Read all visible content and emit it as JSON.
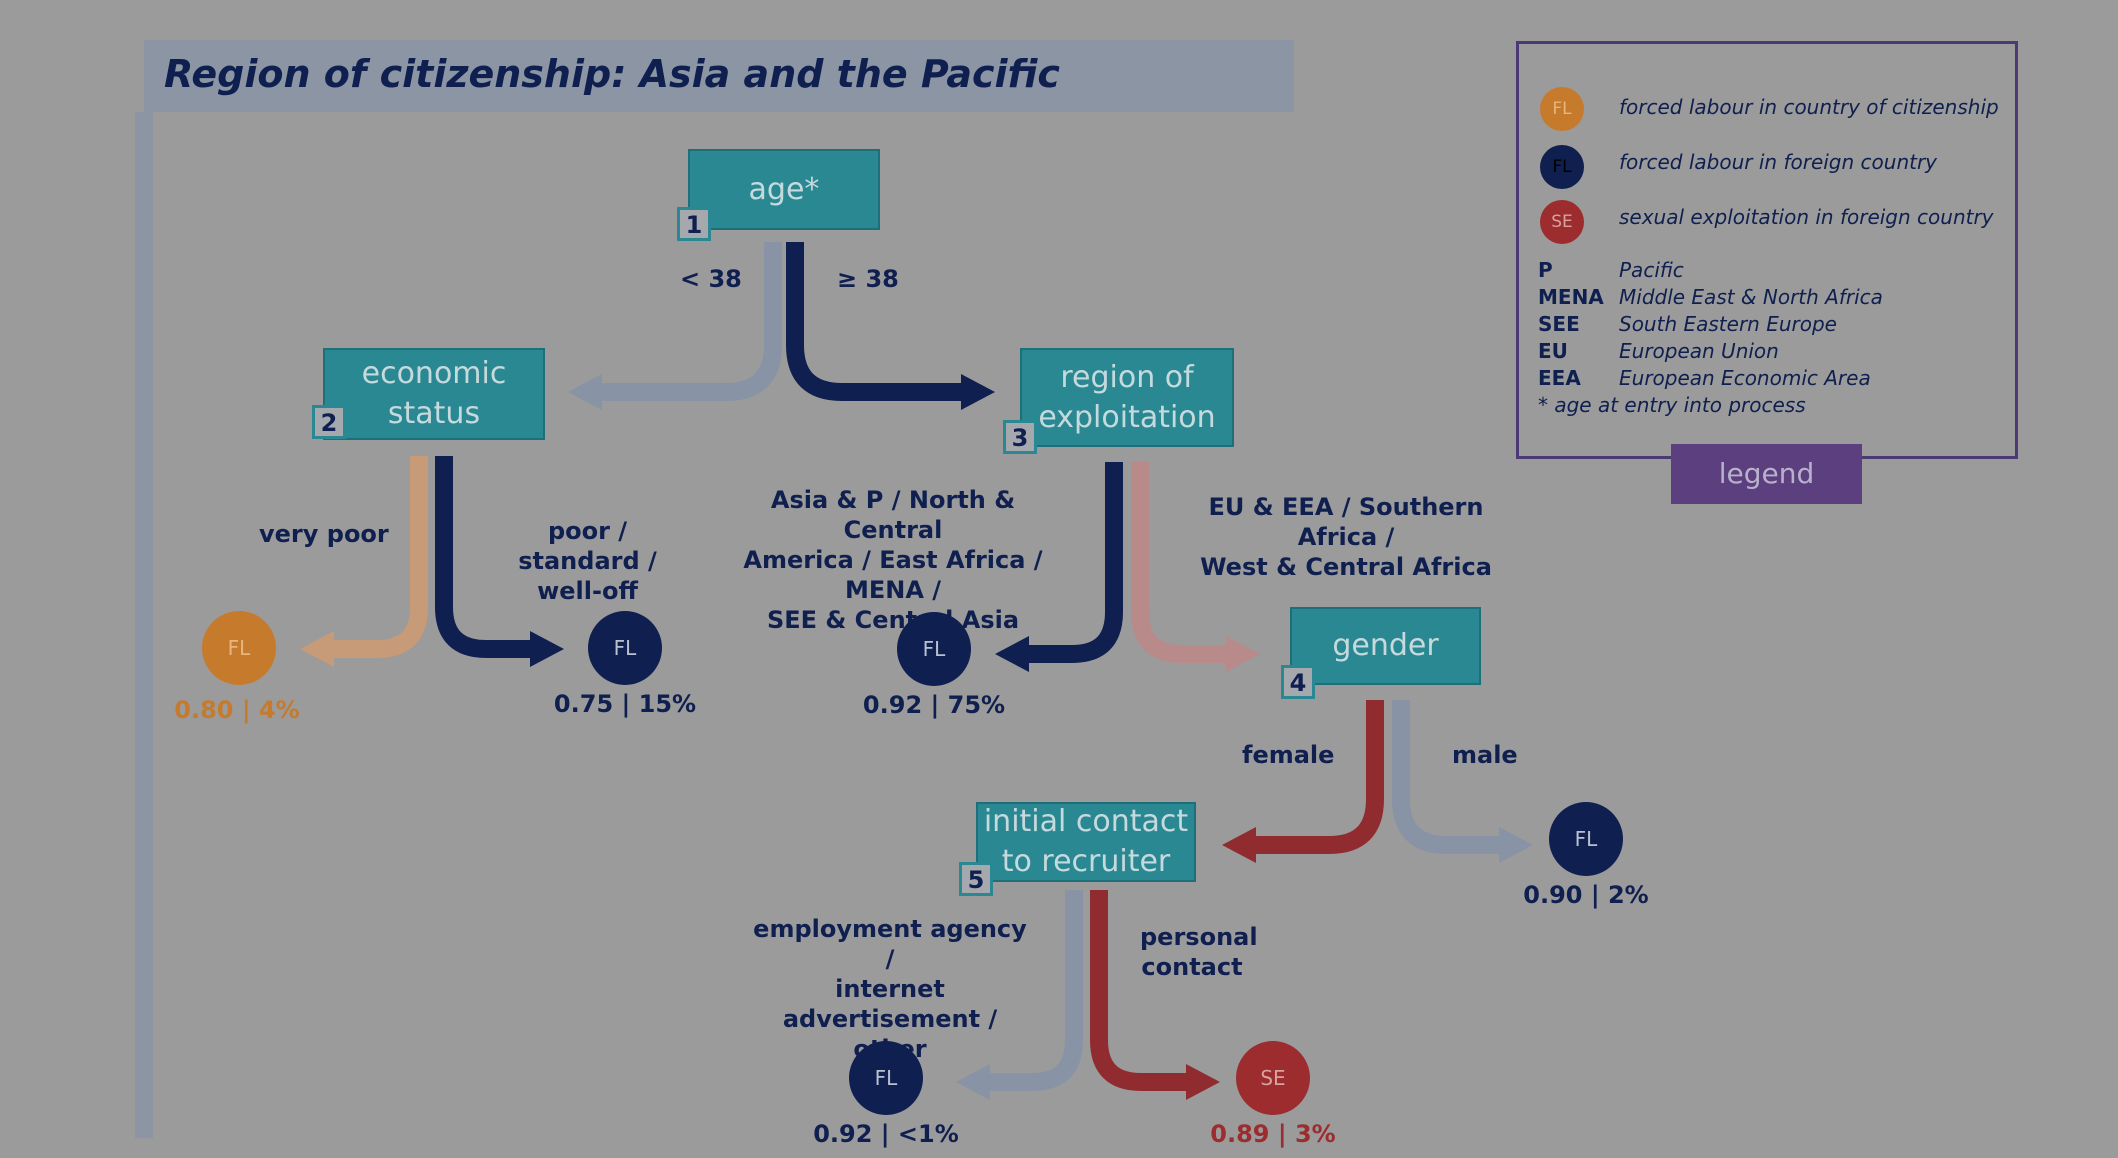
{
  "title": "Region of citizenship: Asia and the Pacific",
  "nodes": [
    {
      "num": "1",
      "label": "age*"
    },
    {
      "num": "2",
      "label": "economic\nstatus"
    },
    {
      "num": "3",
      "label": "region of\nexploitation"
    },
    {
      "num": "4",
      "label": "gender"
    },
    {
      "num": "5",
      "label": "initial contact\nto recruiter"
    }
  ],
  "branches": {
    "age_lt": "< 38",
    "age_ge": "≥ 38",
    "very_poor": "very poor",
    "poor_standard": "poor / standard /\nwell-off",
    "asia_regions": "Asia & P / North & Central\nAmerica / East Africa / MENA /\nSEE & Central Asia",
    "eu_regions": "EU & EEA / Southern Africa /\nWest &  Central Africa",
    "female": "female",
    "male": "male",
    "employment": "employment agency /\ninternet advertisement /\nother",
    "personal": "personal\ncontact"
  },
  "leaves": [
    {
      "type": "FL",
      "value": "0.80 | 4%",
      "color": "#c67a2c"
    },
    {
      "type": "FL",
      "value": "0.75 | 15%",
      "color": "#0f1f4f"
    },
    {
      "type": "FL",
      "value": "0.92 | 75%",
      "color": "#0f1f4f"
    },
    {
      "type": "FL",
      "value": "0.90 | 2%",
      "color": "#0f1f4f"
    },
    {
      "type": "FL",
      "value": "0.92 | <1%",
      "color": "#0f1f4f"
    },
    {
      "type": "SE",
      "value": "0.89 | 3%",
      "color": "#9c2c2e"
    }
  ],
  "legend": {
    "tab": "legend",
    "items": [
      {
        "code": "FL",
        "text": "forced labour in country of citizenship",
        "color": "#c67a2c"
      },
      {
        "code": "FL",
        "text": "forced labour in foreign country",
        "color": "#0f1f4f"
      },
      {
        "code": "SE",
        "text": "sexual exploitation in foreign country",
        "color": "#9c2c2e"
      }
    ],
    "abbreviations": [
      {
        "abbr": "P",
        "text": "Pacific"
      },
      {
        "abbr": "MENA",
        "text": "Middle East & North Africa"
      },
      {
        "abbr": "SEE",
        "text": "South Eastern Europe"
      },
      {
        "abbr": "EU",
        "text": "European Union"
      },
      {
        "abbr": "EEA",
        "text": "European Economic Area"
      }
    ],
    "footnote": "* age at entry into process"
  },
  "colors": {
    "navy": "#0f1f4f",
    "teal": "#2a8893",
    "grey_arrow": "#8893a6",
    "orange_arrow": "#c79a78",
    "red": "#902c30",
    "pink_arrow": "#b88a8a",
    "purple": "#5b3f7e"
  }
}
